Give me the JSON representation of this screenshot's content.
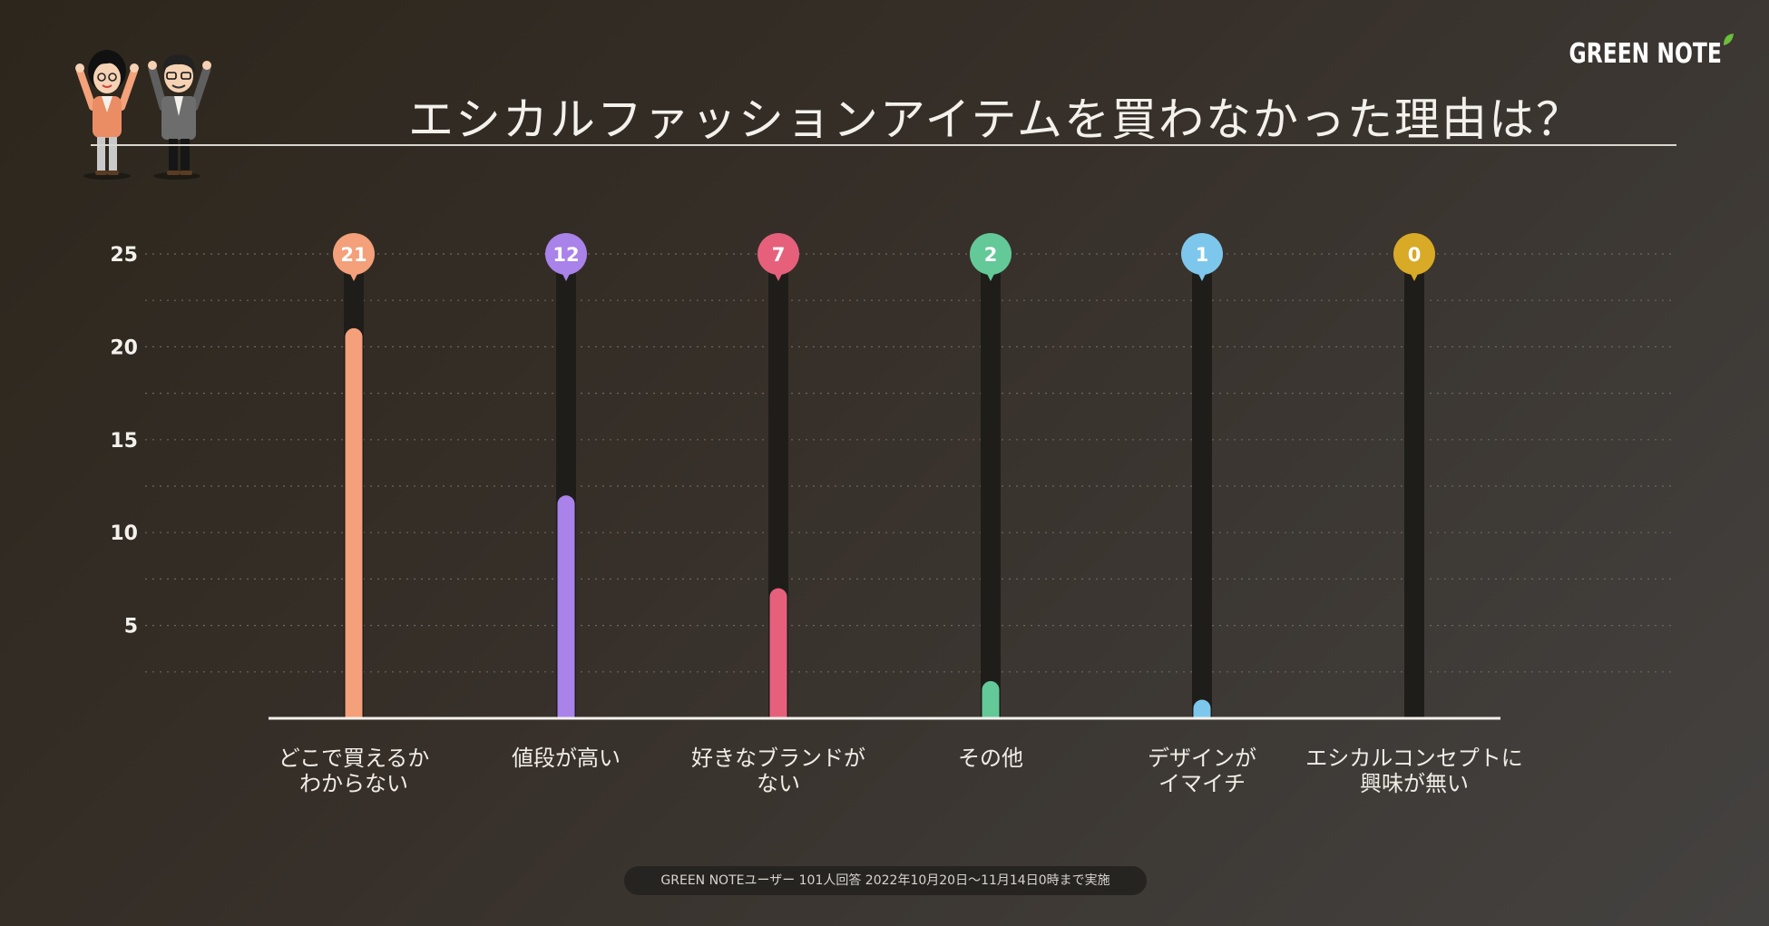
{
  "header": {
    "title": "エシカルファッションアイテムを買わなかった理由は？",
    "logo": "GREEN NOTE"
  },
  "footer": {
    "note": "GREEN NOTEユーザー 101人回答 2022年10月20日〜11月14日0時まで実施"
  },
  "chart_data": {
    "type": "bar",
    "title": "エシカルファッションアイテムを買わなかった理由は？",
    "categories": [
      [
        "どこで買えるか",
        "わからない"
      ],
      [
        "値段が高い"
      ],
      [
        "好きなブランドが",
        "ない"
      ],
      [
        "その他"
      ],
      [
        "デザインが",
        "イマイチ"
      ],
      [
        "エシカルコンセプトに",
        "興味が無い"
      ]
    ],
    "values": [
      21,
      12,
      7,
      2,
      1,
      0
    ],
    "colors": [
      "#f4a07a",
      "#a982ea",
      "#e6607c",
      "#63c998",
      "#7ec7ec",
      "#d9aa26"
    ],
    "yticks": [
      "5",
      "10",
      "15",
      "20",
      "25"
    ],
    "ylim": [
      0,
      25
    ],
    "grid": true
  }
}
